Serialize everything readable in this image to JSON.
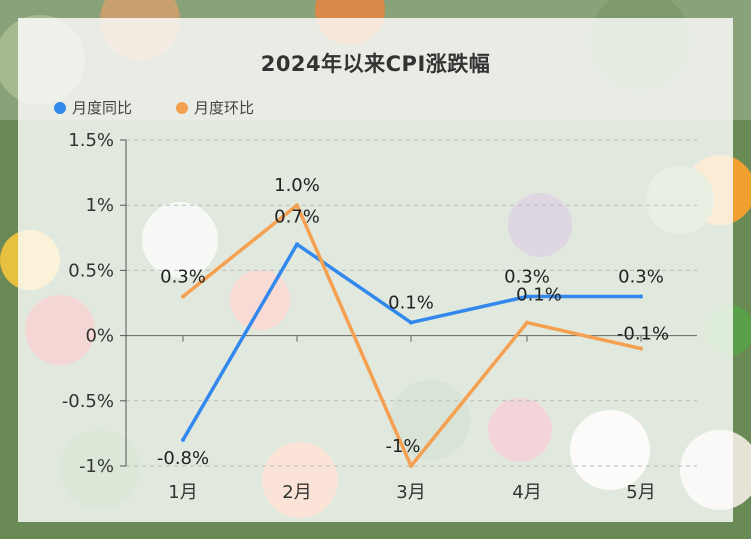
{
  "chart_data": {
    "type": "line",
    "title": "2024年以来CPI涨跌幅",
    "categories": [
      "1月",
      "2月",
      "3月",
      "4月",
      "5月"
    ],
    "series": [
      {
        "name": "月度同比",
        "color": "#3388ee",
        "values": [
          -0.8,
          0.7,
          0.1,
          0.3,
          0.3
        ],
        "labels": [
          "-0.8%",
          "0.7%",
          "0.1%",
          "0.3%",
          "0.3%"
        ]
      },
      {
        "name": "月度环比",
        "color": "#f5a050",
        "values": [
          0.3,
          1.0,
          -1.0,
          0.1,
          -0.1
        ],
        "labels": [
          "0.3%",
          "1.0%",
          "-1%",
          "0.1%",
          "-0.1%"
        ]
      }
    ],
    "y_ticks": [
      1.5,
      1,
      0.5,
      0,
      -0.5,
      -1
    ],
    "y_tick_labels": [
      "1.5%",
      "1%",
      "0.5%",
      "0%",
      "-0.5%",
      "-1%"
    ],
    "ylim": [
      -1,
      1.5
    ],
    "legend": "top-left",
    "grid": "dashed horizontal"
  }
}
